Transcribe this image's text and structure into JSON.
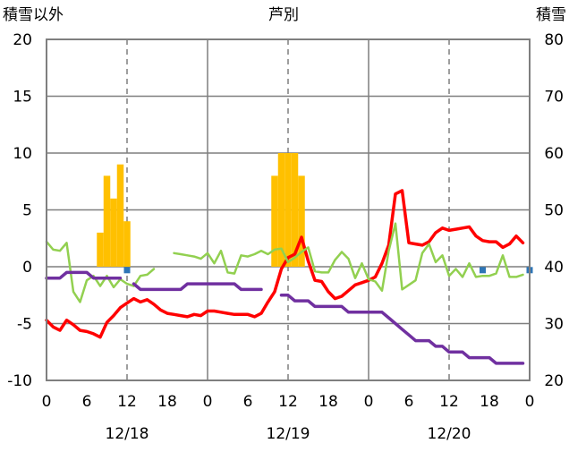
{
  "chart_data": {
    "type": "line+bar",
    "title": "芦別",
    "left_axis": {
      "label": "積雪以外",
      "ylim": [
        -10,
        20
      ],
      "ticks": [
        "-10",
        "-5",
        "0",
        "5",
        "10",
        "15",
        "20"
      ]
    },
    "right_axis": {
      "label": "積雪",
      "ylim": [
        20,
        80
      ],
      "ticks": [
        "20",
        "30",
        "40",
        "50",
        "60",
        "70",
        "80"
      ]
    },
    "x_hours": {
      "range": [
        0,
        72
      ],
      "tick_labels": [
        "0",
        "6",
        "12",
        "18",
        "0",
        "6",
        "12",
        "18",
        "0",
        "6",
        "12",
        "18",
        "0"
      ]
    },
    "dates": [
      "12/18",
      "12/19",
      "12/20"
    ],
    "grid": {
      "solid_vertical_at_hours": [
        24,
        48
      ],
      "dashed_vertical_at_hours": [
        12,
        36,
        60
      ],
      "horizontal": true
    },
    "series": [
      {
        "role": "temperature",
        "color": "#ff0000",
        "axis": "left",
        "x": [
          0,
          1,
          2,
          3,
          4,
          5,
          6,
          7,
          8,
          9,
          10,
          11,
          12,
          13,
          14,
          15,
          16,
          17,
          18,
          19,
          20,
          21,
          22,
          23,
          24,
          25,
          26,
          27,
          28,
          29,
          30,
          31,
          32,
          33,
          34,
          35,
          36,
          37,
          38,
          39,
          40,
          41,
          42,
          43,
          44,
          45,
          46,
          47,
          48,
          49,
          50,
          51,
          52,
          53,
          54,
          55,
          56,
          57,
          58,
          59,
          60,
          61,
          62,
          63,
          64,
          65,
          66,
          67,
          68,
          69,
          70,
          71,
          72
        ],
        "y": [
          -4.7,
          -5.3,
          -5.6,
          -4.7,
          -5.1,
          -5.6,
          -5.7,
          -5.9,
          -6.2,
          -4.9,
          -4.3,
          -3.6,
          -3.2,
          -2.8,
          -3.1,
          -2.9,
          -3.3,
          -3.8,
          -4.1,
          -4.2,
          -4.3,
          -4.4,
          -4.2,
          -4.3,
          -3.9,
          -3.9,
          -4.0,
          -4.1,
          -4.2,
          -4.2,
          -4.2,
          -4.4,
          -4.1,
          -3.1,
          -2.2,
          -0.2,
          0.8,
          1.1,
          2.6,
          0.5,
          -1.2,
          -1.3,
          -2.2,
          -2.8,
          -2.6,
          -2.1,
          -1.6,
          -1.4,
          -1.2,
          -0.9,
          0.3,
          1.9,
          6.4,
          6.7,
          2.1,
          2.0,
          1.9,
          2.2,
          3.0,
          3.4,
          3.2,
          3.3,
          3.4,
          3.5,
          2.7,
          2.3,
          2.2,
          2.2,
          1.7,
          2.0,
          2.7,
          2.1,
          null
        ]
      },
      {
        "role": "wind",
        "color": "#92d050",
        "axis": "left",
        "x": [
          0,
          1,
          2,
          3,
          4,
          5,
          6,
          7,
          8,
          9,
          10,
          11,
          12,
          13,
          14,
          15,
          16,
          17,
          18,
          19,
          20,
          21,
          22,
          23,
          24,
          25,
          26,
          27,
          28,
          29,
          30,
          31,
          32,
          33,
          34,
          35,
          36,
          37,
          38,
          39,
          40,
          41,
          42,
          43,
          44,
          45,
          46,
          47,
          48,
          49,
          50,
          51,
          52,
          53,
          54,
          55,
          56,
          57,
          58,
          59,
          60,
          61,
          62,
          63,
          64,
          65,
          66,
          67,
          68,
          69,
          70,
          71,
          72
        ],
        "y": [
          2.2,
          1.5,
          1.4,
          2.1,
          -2.2,
          -3.1,
          -1.2,
          -0.8,
          -1.7,
          -0.8,
          -1.8,
          -1.1,
          -1.5,
          -1.7,
          -0.8,
          -0.7,
          -0.2,
          null,
          null,
          1.2,
          1.1,
          1.0,
          0.9,
          0.7,
          1.2,
          0.3,
          1.4,
          -0.5,
          -0.6,
          1.0,
          0.9,
          1.1,
          1.4,
          1.1,
          1.5,
          1.6,
          0.4,
          0.8,
          1.3,
          1.7,
          -0.4,
          -0.5,
          -0.5,
          0.6,
          1.3,
          0.7,
          -1.0,
          0.3,
          -1.1,
          -1.3,
          -2.1,
          1.4,
          3.8,
          -2.0,
          -1.6,
          -1.2,
          1.2,
          2.0,
          0.4,
          1.0,
          -0.8,
          -0.2,
          -0.9,
          0.3,
          -0.9,
          -0.8,
          -0.8,
          -0.6,
          1.0,
          -0.9,
          -0.9,
          -0.7,
          null
        ]
      },
      {
        "role": "purple",
        "color": "#7030a0",
        "axis": "left",
        "x": [
          0,
          1,
          2,
          3,
          4,
          5,
          6,
          7,
          8,
          9,
          10,
          11,
          12,
          13,
          14,
          15,
          16,
          17,
          18,
          19,
          20,
          21,
          22,
          23,
          24,
          25,
          26,
          27,
          28,
          29,
          30,
          31,
          32,
          33,
          34,
          35,
          36,
          37,
          38,
          39,
          40,
          41,
          42,
          43,
          44,
          45,
          46,
          47,
          48,
          49,
          50,
          51,
          52,
          53,
          54,
          55,
          56,
          57,
          58,
          59,
          60,
          61,
          62,
          63,
          64,
          65,
          66,
          67,
          68,
          69,
          70,
          71,
          72
        ],
        "y": [
          -1.0,
          -1.0,
          -1.0,
          -0.5,
          -0.5,
          -0.5,
          -0.5,
          -1.0,
          -1.0,
          -1.0,
          -1.0,
          -1.0,
          null,
          -1.5,
          -2.0,
          -2.0,
          -2.0,
          -2.0,
          -2.0,
          -2.0,
          -2.0,
          -1.5,
          -1.5,
          -1.5,
          -1.5,
          -1.5,
          -1.5,
          -1.5,
          -1.5,
          -2.0,
          -2.0,
          -2.0,
          -2.0,
          null,
          null,
          -2.5,
          -2.5,
          -3.0,
          -3.0,
          -3.0,
          -3.5,
          -3.5,
          -3.5,
          -3.5,
          -3.5,
          -4.0,
          -4.0,
          -4.0,
          -4.0,
          -4.0,
          -4.0,
          -4.5,
          -5.0,
          -5.5,
          -6.0,
          -6.5,
          -6.5,
          -6.5,
          -7.0,
          -7.0,
          -7.5,
          -7.5,
          -7.5,
          -8.0,
          -8.0,
          -8.0,
          -8.0,
          -8.5,
          -8.5,
          -8.5,
          -8.5,
          -8.5,
          null
        ]
      }
    ],
    "bars": {
      "role": "precipitation",
      "color": "#ffc000",
      "axis": "left",
      "x": [
        8,
        9,
        10,
        11,
        12,
        34,
        35,
        36,
        37,
        38
      ],
      "values": [
        3.0,
        8.0,
        6.0,
        9.0,
        4.0,
        8.0,
        10.0,
        10.0,
        10.0,
        8.0
      ]
    },
    "markers": {
      "color": "#2e75b6",
      "axis": "left",
      "x": [
        12,
        65,
        72
      ],
      "values": [
        -0.3,
        -0.3,
        -0.3
      ]
    }
  }
}
